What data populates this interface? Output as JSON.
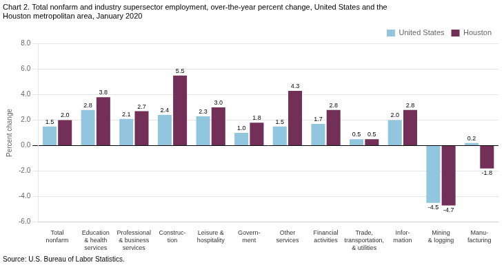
{
  "chart_data": {
    "type": "bar",
    "title": [
      "Chart 2. Total nonfarm and industry supersector employment, over-the-year percent change, United States and the",
      "Houston metropolitan area, January 2020"
    ],
    "ylabel": "Percent change",
    "source": "Source: U.S. Bureau of Labor Statistics.",
    "categories": [
      "Total\nnon­farm",
      "Education\n& health\nservices",
      "Professional\n& business\nservices",
      "Construc-\ntion",
      "Leisure &\nhospitality",
      "Govern-\nment",
      "Other\nservices",
      "Financial\nactivities",
      "Trade,\ntransportation,\n& utilities",
      "Infor-\nmation",
      "Mining\n& logging",
      "Manu-\nfacturing"
    ],
    "series": [
      {
        "name": "United States",
        "color": "#92C5DE",
        "values": [
          1.5,
          2.8,
          2.1,
          2.4,
          2.3,
          1.0,
          1.5,
          1.7,
          0.5,
          2.0,
          -4.5,
          0.2
        ],
        "value_labels": [
          "1.5",
          "2.8",
          "2.1",
          "2.4",
          "2.3",
          "1.0",
          "1.5",
          "1.7",
          "0.5",
          "2.0",
          "-4.5",
          "0.2"
        ]
      },
      {
        "name": "Houston",
        "color": "#722F57",
        "values": [
          2.0,
          3.8,
          2.7,
          5.5,
          3.0,
          1.8,
          4.3,
          2.8,
          0.5,
          2.8,
          -4.7,
          -1.8
        ],
        "value_labels": [
          "2.0",
          "3.8",
          "2.7",
          "5.5",
          "3.0",
          "1.8",
          "4.3",
          "2.8",
          "0.5",
          "2.8",
          "-4.7",
          "-1.8"
        ]
      }
    ],
    "ylim": [
      -6.0,
      8.0
    ],
    "yticks": [
      {
        "value": -6,
        "label": "-6.0"
      },
      {
        "value": -4,
        "label": "-4.0"
      },
      {
        "value": -2,
        "label": "-2.0"
      },
      {
        "value": 0,
        "label": "0.0"
      },
      {
        "value": 2,
        "label": "2.0"
      },
      {
        "value": 4,
        "label": "4.0"
      },
      {
        "value": 6,
        "label": "6.0"
      },
      {
        "value": 8,
        "label": "8.0"
      }
    ],
    "grid": true,
    "legend": "upper right",
    "data_labels": true
  }
}
